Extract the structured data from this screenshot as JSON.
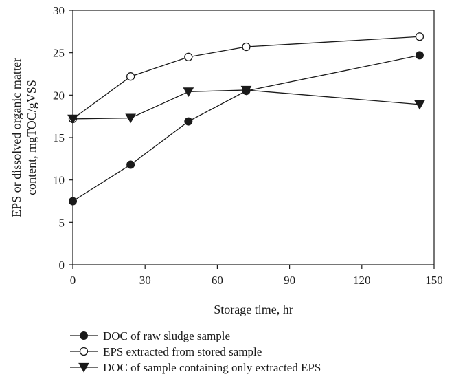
{
  "chart_data": {
    "type": "line",
    "xlabel": "Storage time, hr",
    "ylabel_lines": [
      "EPS or dissolved organic matter",
      "content, mgTOC/gVSS"
    ],
    "xlim": [
      0,
      150
    ],
    "ylim": [
      0,
      30
    ],
    "xticks": [
      0,
      30,
      60,
      90,
      120,
      150
    ],
    "yticks": [
      0,
      5,
      10,
      15,
      20,
      25,
      30
    ],
    "grid": false,
    "legend_position": "bottom",
    "series": [
      {
        "name": "DOC of raw sludge sample",
        "marker": "filled-circle",
        "color": "#1a1a1a",
        "points": [
          [
            0,
            7.5
          ],
          [
            24,
            11.8
          ],
          [
            48,
            16.9
          ],
          [
            72,
            20.5
          ],
          [
            144,
            24.7
          ]
        ]
      },
      {
        "name": "EPS extracted from stored sample",
        "marker": "open-circle",
        "color": "#1a1a1a",
        "points": [
          [
            0,
            17.2
          ],
          [
            24,
            22.2
          ],
          [
            48,
            24.5
          ],
          [
            72,
            25.7
          ],
          [
            144,
            26.9
          ]
        ]
      },
      {
        "name": "DOC of sample containing only extracted EPS",
        "marker": "filled-triangle-down",
        "color": "#1a1a1a",
        "points": [
          [
            0,
            17.2
          ],
          [
            24,
            17.3
          ],
          [
            48,
            20.4
          ],
          [
            72,
            20.6
          ],
          [
            144,
            18.9
          ]
        ]
      }
    ]
  }
}
